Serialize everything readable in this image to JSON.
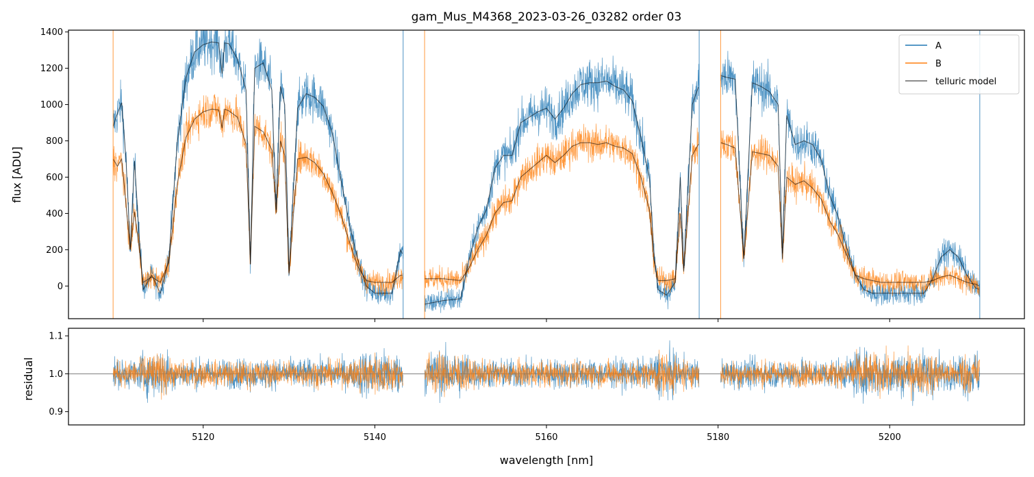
{
  "chart_data": [
    {
      "type": "line",
      "title": "gam_Mus_M4368_2023-03-26_03282  order 03",
      "xlabel": "",
      "ylabel": "flux [ADU]",
      "xlim": [
        5104.3,
        5215.7
      ],
      "ylim": [
        -180,
        1410
      ],
      "x_ticks": [
        5120,
        5140,
        5160,
        5180,
        5200
      ],
      "y_ticks": [
        0,
        200,
        400,
        600,
        800,
        1000,
        1200,
        1400
      ],
      "grid": false,
      "legend": {
        "position": "top-right",
        "entries": [
          "A",
          "B",
          "telluric model"
        ]
      },
      "segments": [
        [
          5109.5,
          5143.3
        ],
        [
          5145.8,
          5177.8
        ],
        [
          5180.3,
          5210.5
        ]
      ],
      "series": [
        {
          "name": "A",
          "color": "#1f77b4",
          "x": [
            5109.5,
            5110.0,
            5110.5,
            5111.0,
            5111.5,
            5112.0,
            5112.5,
            5113.0,
            5114.0,
            5115.0,
            5116.0,
            5117.0,
            5118.0,
            5119.0,
            5120.0,
            5121.0,
            5121.8,
            5122.2,
            5122.5,
            5123.0,
            5124.0,
            5125.0,
            5125.5,
            5126.0,
            5127.0,
            5128.0,
            5128.5,
            5129.0,
            5129.5,
            5130.0,
            5131.0,
            5132.0,
            5133.0,
            5134.0,
            5135.0,
            5136.0,
            5137.0,
            5138.0,
            5139.0,
            5140.0,
            5141.0,
            5142.0,
            5143.0,
            5145.8,
            5148.0,
            5150.0,
            5151.0,
            5152.0,
            5153.0,
            5154.0,
            5155.0,
            5156.0,
            5157.0,
            5158.0,
            5159.0,
            5160.0,
            5161.0,
            5162.0,
            5163.0,
            5164.0,
            5165.0,
            5166.0,
            5167.0,
            5168.0,
            5169.0,
            5170.0,
            5171.0,
            5172.0,
            5172.5,
            5173.0,
            5174.0,
            5175.0,
            5175.6,
            5176.0,
            5177.0,
            5177.8,
            5180.3,
            5181.0,
            5182.0,
            5183.0,
            5184.0,
            5185.0,
            5186.0,
            5187.0,
            5187.5,
            5188.0,
            5189.0,
            5190.0,
            5191.0,
            5192.0,
            5193.0,
            5194.0,
            5195.0,
            5196.0,
            5197.0,
            5198.0,
            5199.0,
            5200.0,
            5202.0,
            5204.0,
            5205.0,
            5206.0,
            5207.0,
            5208.0,
            5209.0,
            5210.0,
            5210.5
          ],
          "y": [
            880,
            950,
            1010,
            700,
            200,
            690,
            300,
            -20,
            60,
            -40,
            150,
            800,
            1150,
            1290,
            1330,
            1345,
            1340,
            1170,
            1340,
            1335,
            1250,
            1080,
            120,
            1200,
            1230,
            1080,
            420,
            1100,
            1000,
            70,
            980,
            1060,
            1040,
            990,
            850,
            600,
            350,
            150,
            0,
            -40,
            -40,
            -40,
            200,
            -100,
            -80,
            -70,
            150,
            320,
            420,
            650,
            720,
            720,
            900,
            930,
            960,
            980,
            920,
            980,
            1060,
            1110,
            1120,
            1120,
            1130,
            1100,
            1080,
            1020,
            820,
            600,
            200,
            -20,
            -50,
            20,
            600,
            100,
            1000,
            1110,
            1160,
            1150,
            1140,
            150,
            1120,
            1100,
            1070,
            1000,
            180,
            940,
            780,
            800,
            780,
            700,
            500,
            380,
            210,
            60,
            -20,
            -40,
            -40,
            -40,
            -40,
            -40,
            40,
            160,
            200,
            160,
            60,
            -10,
            -20
          ]
        },
        {
          "name": "B",
          "color": "#ff7f0e",
          "x": [
            5109.5,
            5110.0,
            5110.5,
            5111.0,
            5111.5,
            5112.0,
            5112.5,
            5113.0,
            5114.0,
            5115.0,
            5116.0,
            5117.0,
            5118.0,
            5119.0,
            5120.0,
            5121.0,
            5121.8,
            5122.2,
            5122.5,
            5123.0,
            5124.0,
            5125.0,
            5125.5,
            5126.0,
            5127.0,
            5128.0,
            5128.5,
            5129.0,
            5129.5,
            5130.0,
            5131.0,
            5132.0,
            5133.0,
            5134.0,
            5135.0,
            5136.0,
            5137.0,
            5138.0,
            5139.0,
            5140.0,
            5141.0,
            5142.0,
            5143.0,
            5145.8,
            5148.0,
            5150.0,
            5151.0,
            5152.0,
            5153.0,
            5154.0,
            5155.0,
            5156.0,
            5157.0,
            5158.0,
            5159.0,
            5160.0,
            5161.0,
            5162.0,
            5163.0,
            5164.0,
            5165.0,
            5166.0,
            5167.0,
            5168.0,
            5169.0,
            5170.0,
            5171.0,
            5172.0,
            5172.5,
            5173.0,
            5174.0,
            5175.0,
            5175.6,
            5176.0,
            5177.0,
            5177.8,
            5180.3,
            5181.0,
            5182.0,
            5183.0,
            5184.0,
            5185.0,
            5186.0,
            5187.0,
            5187.5,
            5188.0,
            5189.0,
            5190.0,
            5191.0,
            5192.0,
            5193.0,
            5194.0,
            5195.0,
            5196.0,
            5197.0,
            5198.0,
            5199.0,
            5200.0,
            5202.0,
            5204.0,
            5205.0,
            5206.0,
            5207.0,
            5208.0,
            5209.0,
            5210.0,
            5210.5
          ],
          "y": [
            700,
            660,
            700,
            450,
            200,
            410,
            220,
            20,
            50,
            20,
            130,
            570,
            820,
            920,
            960,
            975,
            970,
            870,
            975,
            965,
            930,
            780,
            120,
            880,
            850,
            750,
            400,
            800,
            720,
            60,
            700,
            710,
            680,
            620,
            520,
            400,
            250,
            110,
            30,
            20,
            20,
            20,
            60,
            40,
            40,
            30,
            100,
            200,
            280,
            400,
            460,
            470,
            600,
            640,
            680,
            720,
            680,
            720,
            770,
            790,
            790,
            780,
            790,
            770,
            760,
            730,
            600,
            420,
            150,
            30,
            30,
            40,
            400,
            80,
            720,
            790,
            790,
            780,
            760,
            150,
            740,
            730,
            720,
            660,
            150,
            600,
            560,
            580,
            540,
            480,
            360,
            280,
            170,
            60,
            40,
            30,
            20,
            20,
            20,
            20,
            30,
            50,
            60,
            40,
            20,
            10,
            0
          ]
        },
        {
          "name": "telluric model",
          "color": "#000000"
        }
      ]
    },
    {
      "type": "line",
      "title": "",
      "xlabel": "wavelength [nm]",
      "ylabel": "residual",
      "xlim": [
        5104.3,
        5215.7
      ],
      "ylim": [
        0.865,
        1.12
      ],
      "x_ticks": [
        5120,
        5140,
        5160,
        5180,
        5200
      ],
      "y_ticks": [
        0.9,
        1.0,
        1.1
      ],
      "reference_line": 1.0,
      "series": [
        {
          "name": "A",
          "color": "#1f77b4",
          "center": 1.0,
          "spread": 0.035
        },
        {
          "name": "B",
          "color": "#ff7f0e",
          "center": 1.0,
          "spread": 0.03
        }
      ]
    }
  ]
}
